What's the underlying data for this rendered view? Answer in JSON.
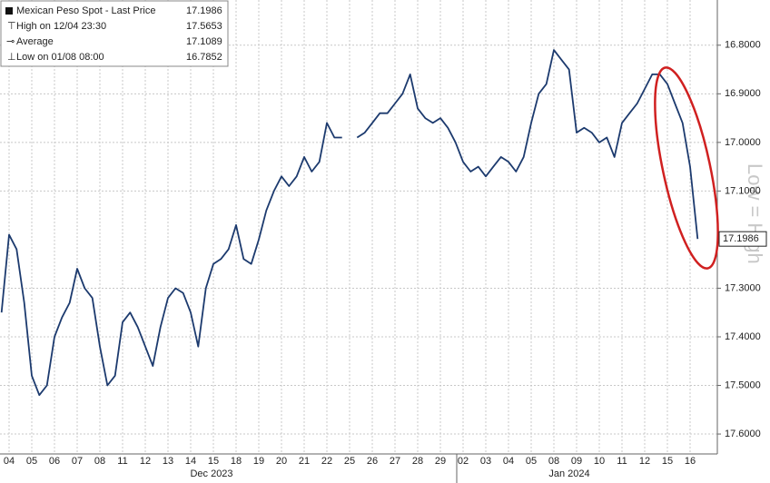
{
  "chart_data": {
    "type": "line",
    "categories": [
      null,
      "04",
      null,
      null,
      "05",
      null,
      null,
      "06",
      null,
      null,
      "07",
      null,
      null,
      "08",
      null,
      null,
      "11",
      null,
      null,
      "12",
      null,
      null,
      "13",
      null,
      null,
      "14",
      null,
      null,
      "15",
      null,
      null,
      "18",
      null,
      null,
      "19",
      null,
      null,
      "20",
      null,
      null,
      "21",
      null,
      null,
      "22",
      null,
      null,
      "25",
      null,
      null,
      "26",
      null,
      null,
      "27",
      null,
      null,
      "28",
      null,
      null,
      "29",
      null,
      null,
      "02",
      null,
      null,
      "03",
      null,
      null,
      "04",
      null,
      null,
      "05",
      null,
      null,
      "08",
      null,
      null,
      "09",
      null,
      null,
      "10",
      null,
      null,
      "11",
      null,
      null,
      "12",
      null,
      null,
      "15",
      null,
      null,
      "16",
      null
    ],
    "month_labels": [
      "Dec 2023",
      "Jan 2024"
    ],
    "series": [
      {
        "name": "Mexican Peso Spot - Last Price",
        "color": "#1c3a6e",
        "values": [
          17.35,
          17.19,
          17.22,
          17.33,
          17.48,
          17.52,
          17.5,
          17.4,
          17.36,
          17.33,
          17.26,
          17.3,
          17.32,
          17.42,
          17.5,
          17.48,
          17.37,
          17.35,
          17.38,
          17.42,
          17.46,
          17.38,
          17.32,
          17.3,
          17.31,
          17.35,
          17.42,
          17.3,
          17.25,
          17.24,
          17.22,
          17.17,
          17.24,
          17.25,
          17.2,
          17.14,
          17.1,
          17.07,
          17.09,
          17.07,
          17.03,
          17.06,
          17.04,
          16.96,
          16.99,
          16.99,
          null,
          16.99,
          16.98,
          16.96,
          16.94,
          16.94,
          16.92,
          16.9,
          16.86,
          16.93,
          16.95,
          16.96,
          16.95,
          16.97,
          17.0,
          17.04,
          17.06,
          17.05,
          17.07,
          17.05,
          17.03,
          17.04,
          17.06,
          17.03,
          16.96,
          16.9,
          16.88,
          16.81,
          16.83,
          16.85,
          16.98,
          16.97,
          16.98,
          17.0,
          16.99,
          17.03,
          16.96,
          16.94,
          16.92,
          16.89,
          16.86,
          16.86,
          16.88,
          16.92,
          16.96,
          17.05,
          17.1986
        ]
      }
    ],
    "legend": [
      {
        "label": "Mexican Peso Spot - Last Price",
        "value": 17.1986
      },
      {
        "label": "High on 12/04 23:30",
        "value": 17.5653
      },
      {
        "label": "Average",
        "value": 17.1089
      },
      {
        "label": "Low on 01/08 08:00",
        "value": 16.7852
      }
    ],
    "annotation": "Low = High",
    "ylim": [
      16.707,
      17.641
    ],
    "y_inverted": true,
    "yticks": [
      {
        "value": 16.8,
        "label": "16.8000"
      },
      {
        "value": 16.9,
        "label": "16.9000"
      },
      {
        "value": 17.0,
        "label": "17.0000"
      },
      {
        "value": 17.1,
        "label": "17.1000"
      },
      {
        "value": 17.3,
        "label": "17.3000"
      },
      {
        "value": 17.4,
        "label": "17.4000"
      },
      {
        "value": 17.5,
        "label": "17.5000"
      },
      {
        "value": 17.6,
        "label": "17.6000"
      }
    ],
    "grid": true
  }
}
